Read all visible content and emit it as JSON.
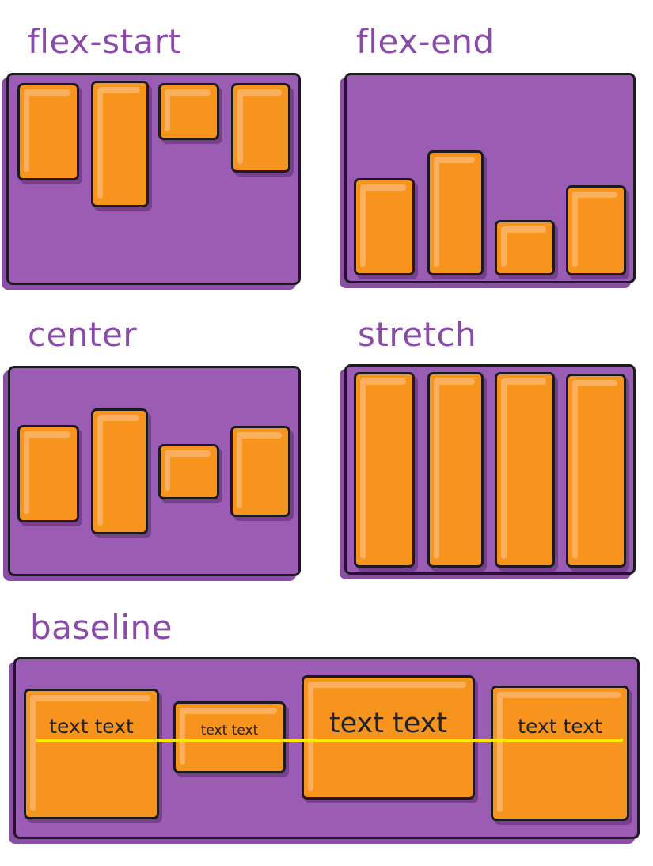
{
  "panels": {
    "flex_start": {
      "title": "flex-start"
    },
    "flex_end": {
      "title": "flex-end"
    },
    "center": {
      "title": "center"
    },
    "stretch": {
      "title": "stretch"
    },
    "baseline": {
      "title": "baseline",
      "items": [
        "text text",
        "text text",
        "text text",
        "text text"
      ]
    }
  },
  "colors": {
    "container": "#9b5db4",
    "item": "#f7941d",
    "title": "#8a4aa8",
    "baseline_line": "#ffe600",
    "outline": "#1c1a1e"
  }
}
